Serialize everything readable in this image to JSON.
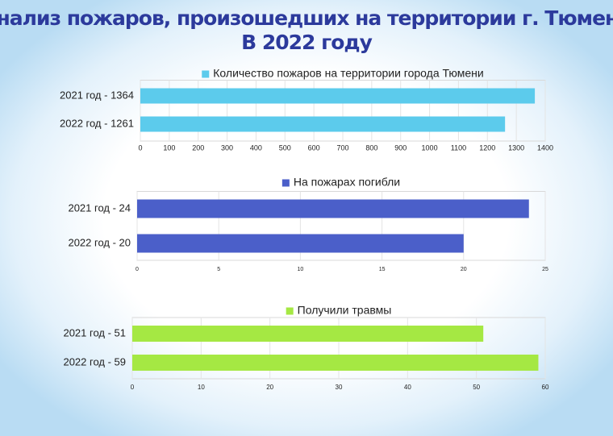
{
  "title": [
    "Анализ пожаров, произошедших на территории г. Тюмени",
    "В 2022 году"
  ],
  "chart_data": [
    {
      "type": "bar",
      "orientation": "horizontal",
      "categories": [
        "2021 год - 1364",
        "2022 год - 1261"
      ],
      "series": [
        {
          "name": "Количество пожаров на территории города Тюмени",
          "color": "#5ccbec",
          "values": [
            1364,
            1261
          ]
        }
      ],
      "xlim": [
        0,
        1400
      ],
      "xticks": [
        0,
        100,
        200,
        300,
        400,
        500,
        600,
        700,
        800,
        900,
        1000,
        1100,
        1200,
        1300,
        1400
      ],
      "grid": true
    },
    {
      "type": "bar",
      "orientation": "horizontal",
      "categories": [
        "2021 год - 24",
        "2022 год - 20"
      ],
      "series": [
        {
          "name": "На пожарах погибли",
          "color": "#4b5fc9",
          "values": [
            24,
            20
          ]
        }
      ],
      "xlim": [
        0,
        25
      ],
      "xticks": [
        0,
        5,
        10,
        15,
        20,
        25
      ],
      "grid": true
    },
    {
      "type": "bar",
      "orientation": "horizontal",
      "categories": [
        "2021 год - 51",
        "2022 год - 59"
      ],
      "series": [
        {
          "name": "Получили травмы",
          "color": "#a5e843",
          "values": [
            51,
            59
          ]
        }
      ],
      "xlim": [
        0,
        60
      ],
      "xticks": [
        0,
        10,
        20,
        30,
        40,
        50,
        60
      ],
      "grid": true
    }
  ]
}
